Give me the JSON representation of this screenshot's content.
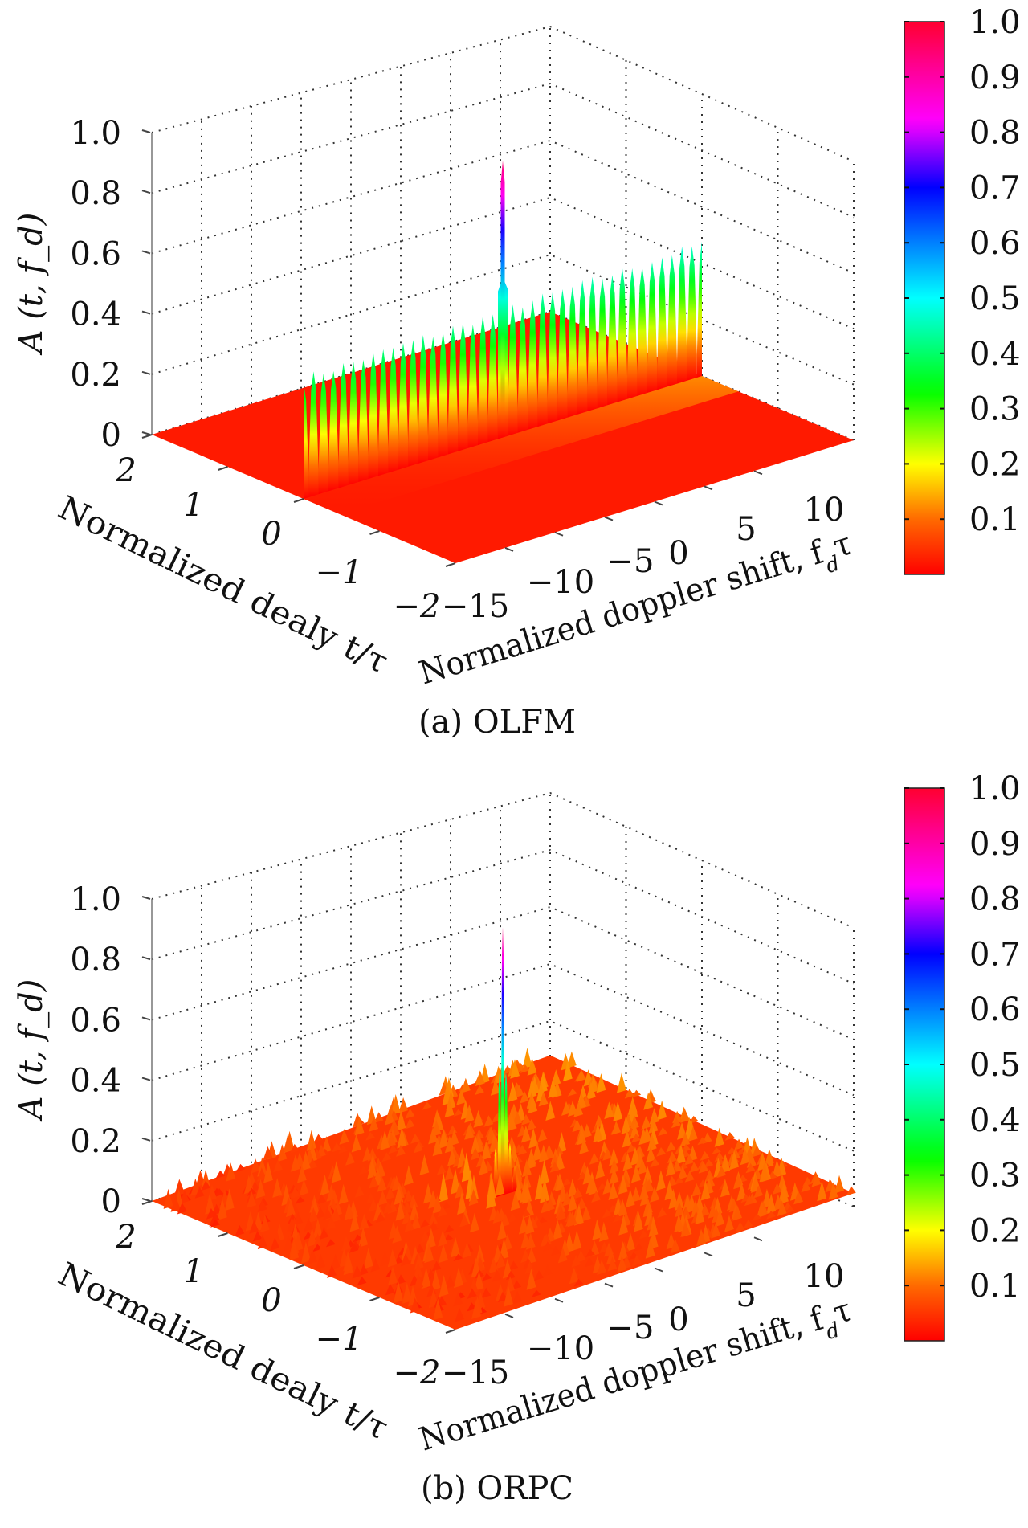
{
  "chart_data": [
    {
      "type": "surface3d",
      "title": "(a) OLFM",
      "zlabel": "A (t, f_d)",
      "xlabel": "Normalized dealy t/τ",
      "ylabel": "Normalized doppler shift, f_dτ",
      "z_ticks": [
        "0",
        "0.2",
        "0.4",
        "0.6",
        "0.8",
        "1.0"
      ],
      "z_tick_values": [
        0,
        0.2,
        0.4,
        0.6,
        0.8,
        1.0
      ],
      "zlim": [
        0,
        1
      ],
      "delay_ticks": [
        "2",
        "1",
        "0",
        "−1",
        "−2"
      ],
      "delay_tick_values": [
        2,
        1,
        0,
        -1,
        -2
      ],
      "delay_range": [
        -2,
        2
      ],
      "doppler_ticks": [
        "−15",
        "−10",
        "−5",
        "0",
        "5",
        "10"
      ],
      "doppler_tick_values": [
        -15,
        -10,
        -5,
        0,
        5,
        10
      ],
      "doppler_range": [
        -20,
        20
      ],
      "colorbar_ticks": [
        "0.1",
        "0.2",
        "0.3",
        "0.4",
        "0.5",
        "0.6",
        "0.7",
        "0.8",
        "0.9",
        "1.0"
      ],
      "colorbar_values": [
        0.1,
        0.2,
        0.3,
        0.4,
        0.5,
        0.6,
        0.7,
        0.8,
        0.9,
        1.0
      ],
      "surface": {
        "kind": "ridge",
        "ridge_delay": 0,
        "peak": {
          "delay": 0,
          "doppler": 0,
          "value": 0.95
        },
        "sidelobe_count": 40,
        "sidelobe_level_left": 0.4,
        "sidelobe_level_right": 0.47,
        "floor_level": 0.0
      },
      "grid": true,
      "colormap": "hsv-like (red-yellow-green-cyan-blue-magenta-red)"
    },
    {
      "type": "surface3d",
      "title": "(b) ORPC",
      "zlabel": "A (t, f_d)",
      "xlabel": "Normalized dealy t/τ",
      "ylabel": "Normalized doppler shift, f_dτ",
      "z_ticks": [
        "0",
        "0.2",
        "0.4",
        "0.6",
        "0.8",
        "1.0"
      ],
      "z_tick_values": [
        0,
        0.2,
        0.4,
        0.6,
        0.8,
        1.0
      ],
      "zlim": [
        0,
        1
      ],
      "delay_ticks": [
        "2",
        "1",
        "0",
        "−1",
        "−2"
      ],
      "delay_tick_values": [
        2,
        1,
        0,
        -1,
        -2
      ],
      "delay_range": [
        -2,
        2
      ],
      "doppler_ticks": [
        "−15",
        "−10",
        "−5",
        "0",
        "5",
        "10"
      ],
      "doppler_tick_values": [
        -15,
        -10,
        -5,
        0,
        5,
        10
      ],
      "doppler_range": [
        -20,
        20
      ],
      "colorbar_ticks": [
        "0.1",
        "0.2",
        "0.3",
        "0.4",
        "0.5",
        "0.6",
        "0.7",
        "0.8",
        "0.9",
        "1.0"
      ],
      "colorbar_values": [
        0.1,
        0.2,
        0.3,
        0.4,
        0.5,
        0.6,
        0.7,
        0.8,
        0.9,
        1.0
      ],
      "surface": {
        "kind": "thumbtack",
        "peak": {
          "delay": 0,
          "doppler": 0,
          "value": 0.95
        },
        "near_sidelobe_level": 0.2,
        "noise_floor_level": 0.08
      },
      "grid": true,
      "colormap": "hsv-like (red-yellow-green-cyan-blue-magenta-red)"
    }
  ],
  "colors": {
    "colormap_stops": [
      [
        0,
        "#ff0000"
      ],
      [
        0.1,
        "#ff6a00"
      ],
      [
        0.2,
        "#ffff00"
      ],
      [
        0.33,
        "#00ff00"
      ],
      [
        0.5,
        "#00ffff"
      ],
      [
        0.7,
        "#0000ff"
      ],
      [
        0.82,
        "#ff00ff"
      ],
      [
        0.92,
        "#ff0090"
      ],
      [
        1.0,
        "#ff0030"
      ]
    ],
    "grid": "#333333"
  }
}
